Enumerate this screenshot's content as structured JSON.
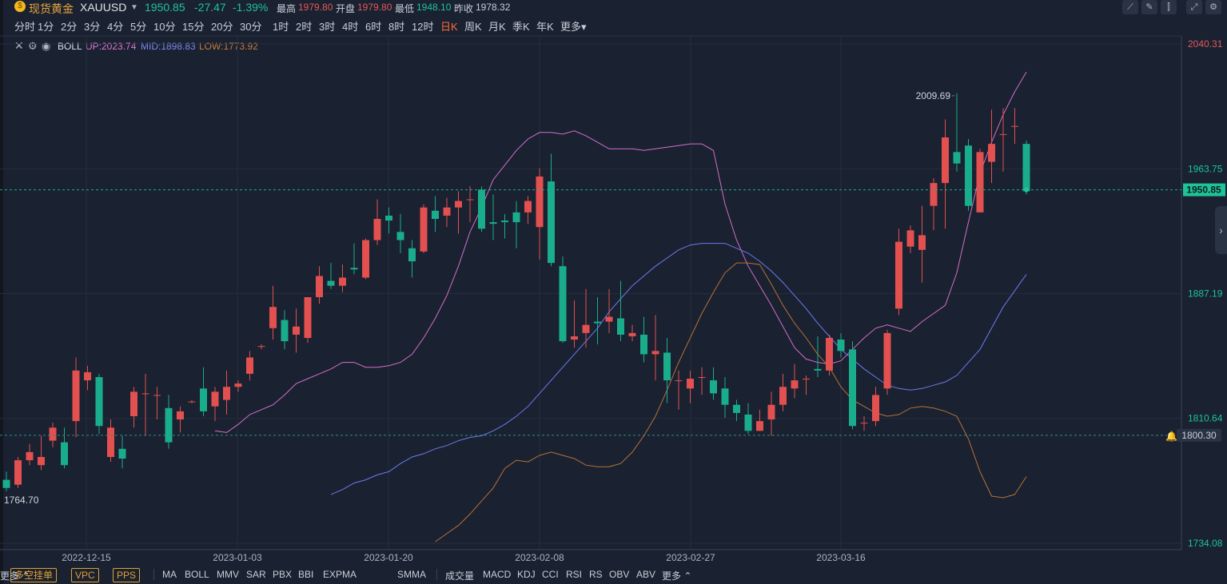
{
  "header": {
    "coin_icon": "gold-coin-icon",
    "name": "现货黄金",
    "symbol": "XAUUSD",
    "price": "1950.85",
    "change": "-27.47",
    "change_pct": "-1.39%",
    "high_label": "最高",
    "high": "1979.80",
    "open_label": "开盘",
    "open": "1979.80",
    "low_label": "最低",
    "low": "1948.10",
    "prev_close_label": "昨收",
    "prev_close": "1978.32"
  },
  "toolbar_icons": [
    "line-chart-icon",
    "draw-pen-icon",
    "candle-style-icon",
    "fullscreen-icon"
  ],
  "periods": [
    "分时",
    "1分",
    "2分",
    "3分",
    "4分",
    "5分",
    "10分",
    "15分",
    "20分",
    "30分",
    "1时",
    "2时",
    "3时",
    "4时",
    "6时",
    "8时",
    "12时",
    "日K",
    "周K",
    "月K",
    "季K",
    "年K",
    "更多"
  ],
  "active_period": "日K",
  "indicator_legend": {
    "name": "BOLL",
    "up": "UP:2023.74",
    "mid": "MID:1898.83",
    "low": "LOW:1773.92"
  },
  "bottom": {
    "tags": [
      "多空挂单",
      "VPC",
      "PPS"
    ],
    "main_indicators": [
      "MA",
      "BOLL",
      "MMV",
      "SAR",
      "PBX",
      "BBI",
      "EXPMA",
      "SMMA",
      "更多"
    ],
    "sub_indicators": [
      "成交量",
      "MACD",
      "KDJ",
      "CCI",
      "RSI",
      "RS",
      "OBV",
      "ABV",
      "更多"
    ]
  },
  "chart_data": {
    "type": "candlestick",
    "title": "现货黄金 XAUUSD 日K",
    "y_axis": {
      "ylim": [
        1734.08,
        2040.31
      ],
      "ticks": [
        "2040.31",
        "1963.75",
        "1887.19",
        "1810.64",
        "1734.08"
      ]
    },
    "x_axis": {
      "ticks": [
        "2022-12-15",
        "2023-01-03",
        "2023-01-20",
        "2023-02-08",
        "2023-02-27",
        "2023-03-16"
      ]
    },
    "current_price_label": "1950.85",
    "alert_line_label": "1800.30",
    "annotations": {
      "max_label": "2009.69",
      "min_label": "1764.70"
    },
    "candles": [
      [
        1773,
        1768,
        1778,
        1766
      ],
      [
        1770,
        1785,
        1787,
        1768
      ],
      [
        1785,
        1790,
        1795,
        1782
      ],
      [
        1782,
        1787,
        1800,
        1779
      ],
      [
        1797,
        1805,
        1808,
        1793
      ],
      [
        1796,
        1782,
        1805,
        1780
      ],
      [
        1809,
        1840,
        1848,
        1799
      ],
      [
        1834,
        1839,
        1843,
        1828
      ],
      [
        1836,
        1806,
        1838,
        1801
      ],
      [
        1787,
        1805,
        1810,
        1784
      ],
      [
        1792,
        1786,
        1800,
        1780
      ],
      [
        1812,
        1827,
        1830,
        1805
      ],
      [
        1826,
        1826,
        1838,
        1800
      ],
      [
        1825,
        1825,
        1830,
        1810
      ],
      [
        1817,
        1796,
        1825,
        1792
      ],
      [
        1810,
        1815,
        1818,
        1802
      ],
      [
        1821,
        1821,
        1822,
        1820
      ],
      [
        1829,
        1815,
        1842,
        1812
      ],
      [
        1818,
        1827,
        1830,
        1809
      ],
      [
        1822,
        1830,
        1840,
        1813
      ],
      [
        1830,
        1832,
        1834,
        1827
      ],
      [
        1838,
        1848,
        1852,
        1834
      ],
      [
        1855,
        1855,
        1856,
        1853
      ],
      [
        1866,
        1879,
        1892,
        1859
      ],
      [
        1871,
        1858,
        1877,
        1853
      ],
      [
        1862,
        1867,
        1878,
        1851
      ],
      [
        1860,
        1885,
        1885,
        1857
      ],
      [
        1885,
        1898,
        1904,
        1881
      ],
      [
        1895,
        1892,
        1906,
        1890
      ],
      [
        1892,
        1897,
        1905,
        1888
      ],
      [
        1903,
        1902,
        1918,
        1899
      ],
      [
        1897,
        1920,
        1921,
        1896
      ],
      [
        1920,
        1933,
        1945,
        1917
      ],
      [
        1935,
        1932,
        1940,
        1924
      ],
      [
        1925,
        1920,
        1936,
        1912
      ],
      [
        1915,
        1907,
        1920,
        1897
      ],
      [
        1913,
        1940,
        1942,
        1912
      ],
      [
        1938,
        1933,
        1947,
        1925
      ],
      [
        1935,
        1940,
        1946,
        1928
      ],
      [
        1940,
        1944,
        1950,
        1924
      ],
      [
        1945,
        1945,
        1953,
        1931
      ],
      [
        1951,
        1927,
        1953,
        1925
      ],
      [
        1931,
        1930,
        1948,
        1920
      ],
      [
        1932,
        1931,
        1936,
        1921
      ],
      [
        1937,
        1931,
        1944,
        1915
      ],
      [
        1937,
        1944,
        1947,
        1930
      ],
      [
        1928,
        1959,
        1964,
        1908
      ],
      [
        1956,
        1906,
        1973,
        1904
      ],
      [
        1904,
        1858,
        1910,
        1857
      ],
      [
        1859,
        1861,
        1883,
        1854
      ],
      [
        1863,
        1868,
        1890,
        1854
      ],
      [
        1870,
        1869,
        1885,
        1856
      ],
      [
        1870,
        1873,
        1890,
        1863
      ],
      [
        1872,
        1862,
        1895,
        1858
      ],
      [
        1861,
        1863,
        1868,
        1858
      ],
      [
        1862,
        1850,
        1873,
        1845
      ],
      [
        1850,
        1852,
        1874,
        1834
      ],
      [
        1851,
        1834,
        1860,
        1820
      ],
      [
        1834,
        1834,
        1840,
        1816
      ],
      [
        1829,
        1835,
        1840,
        1820
      ],
      [
        1836,
        1836,
        1842,
        1825
      ],
      [
        1834,
        1826,
        1842,
        1822
      ],
      [
        1829,
        1819,
        1836,
        1811
      ],
      [
        1819,
        1814,
        1822,
        1809
      ],
      [
        1813,
        1803,
        1820,
        1801
      ],
      [
        1803,
        1809,
        1816,
        1803
      ],
      [
        1810,
        1819,
        1827,
        1800
      ],
      [
        1819,
        1830,
        1838,
        1815
      ],
      [
        1829,
        1834,
        1844,
        1823
      ],
      [
        1835,
        1835,
        1837,
        1825
      ],
      [
        1841,
        1840,
        1861,
        1836
      ],
      [
        1840,
        1860,
        1862,
        1837
      ],
      [
        1859,
        1852,
        1863,
        1848
      ],
      [
        1853,
        1806,
        1858,
        1804
      ],
      [
        1808,
        1808,
        1812,
        1803
      ],
      [
        1809,
        1825,
        1830,
        1806
      ],
      [
        1829,
        1863,
        1865,
        1825
      ],
      [
        1878,
        1919,
        1927,
        1874
      ],
      [
        1916,
        1926,
        1929,
        1912
      ],
      [
        1914,
        1923,
        1941,
        1894
      ],
      [
        1941,
        1955,
        1958,
        1926
      ],
      [
        1955,
        1983,
        1994,
        1927
      ],
      [
        1974,
        1967,
        2010,
        1962
      ],
      [
        1978,
        1941,
        1982,
        1938
      ],
      [
        1937,
        1974,
        1976,
        1938
      ],
      [
        1968,
        1979,
        2000,
        1955
      ],
      [
        1985,
        1985,
        2001,
        1962
      ],
      [
        1990,
        1990,
        2001,
        1979
      ],
      [
        1979,
        1950,
        1981,
        1948
      ]
    ],
    "boll_up": [
      1803,
      1802,
      1807,
      1813,
      1816,
      1819,
      1825,
      1832,
      1835,
      1838,
      1841,
      1845,
      1845,
      1842,
      1842,
      1843,
      1845,
      1850,
      1860,
      1872,
      1886,
      1904,
      1925,
      1940,
      1957,
      1966,
      1975,
      1982,
      1986,
      1986,
      1985,
      1987,
      1984,
      1980,
      1976,
      1976,
      1976,
      1975,
      1976,
      1977,
      1978,
      1979,
      1979,
      1975,
      1942,
      1920,
      1904,
      1892,
      1880,
      1867,
      1854,
      1847,
      1845,
      1844,
      1846,
      1853,
      1860,
      1866,
      1868,
      1866,
      1864,
      1870,
      1875,
      1880,
      1900,
      1931,
      1961,
      1980,
      1997,
      2011,
      2023
    ],
    "boll_mid": [
      1764,
      1767,
      1771,
      1773,
      1776,
      1778,
      1783,
      1787,
      1789,
      1792,
      1794,
      1797,
      1799,
      1800,
      1803,
      1807,
      1812,
      1818,
      1826,
      1834,
      1842,
      1850,
      1858,
      1866,
      1876,
      1884,
      1892,
      1898,
      1904,
      1909,
      1914,
      1917,
      1918,
      1918,
      1918,
      1915,
      1912,
      1907,
      1901,
      1894,
      1886,
      1878,
      1869,
      1861,
      1853,
      1847,
      1841,
      1836,
      1831,
      1829,
      1828,
      1829,
      1831,
      1833,
      1837,
      1845,
      1853,
      1866,
      1879,
      1889,
      1899
    ],
    "boll_low": [
      1735,
      1740,
      1745,
      1752,
      1760,
      1768,
      1780,
      1785,
      1784,
      1788,
      1790,
      1788,
      1786,
      1782,
      1781,
      1781,
      1783,
      1790,
      1800,
      1812,
      1828,
      1845,
      1860,
      1875,
      1888,
      1900,
      1906,
      1906,
      1905,
      1893,
      1880,
      1869,
      1860,
      1850,
      1842,
      1830,
      1822,
      1818,
      1814,
      1812,
      1813,
      1817,
      1818,
      1817,
      1815,
      1812,
      1798,
      1778,
      1763,
      1762,
      1764,
      1775
    ]
  }
}
